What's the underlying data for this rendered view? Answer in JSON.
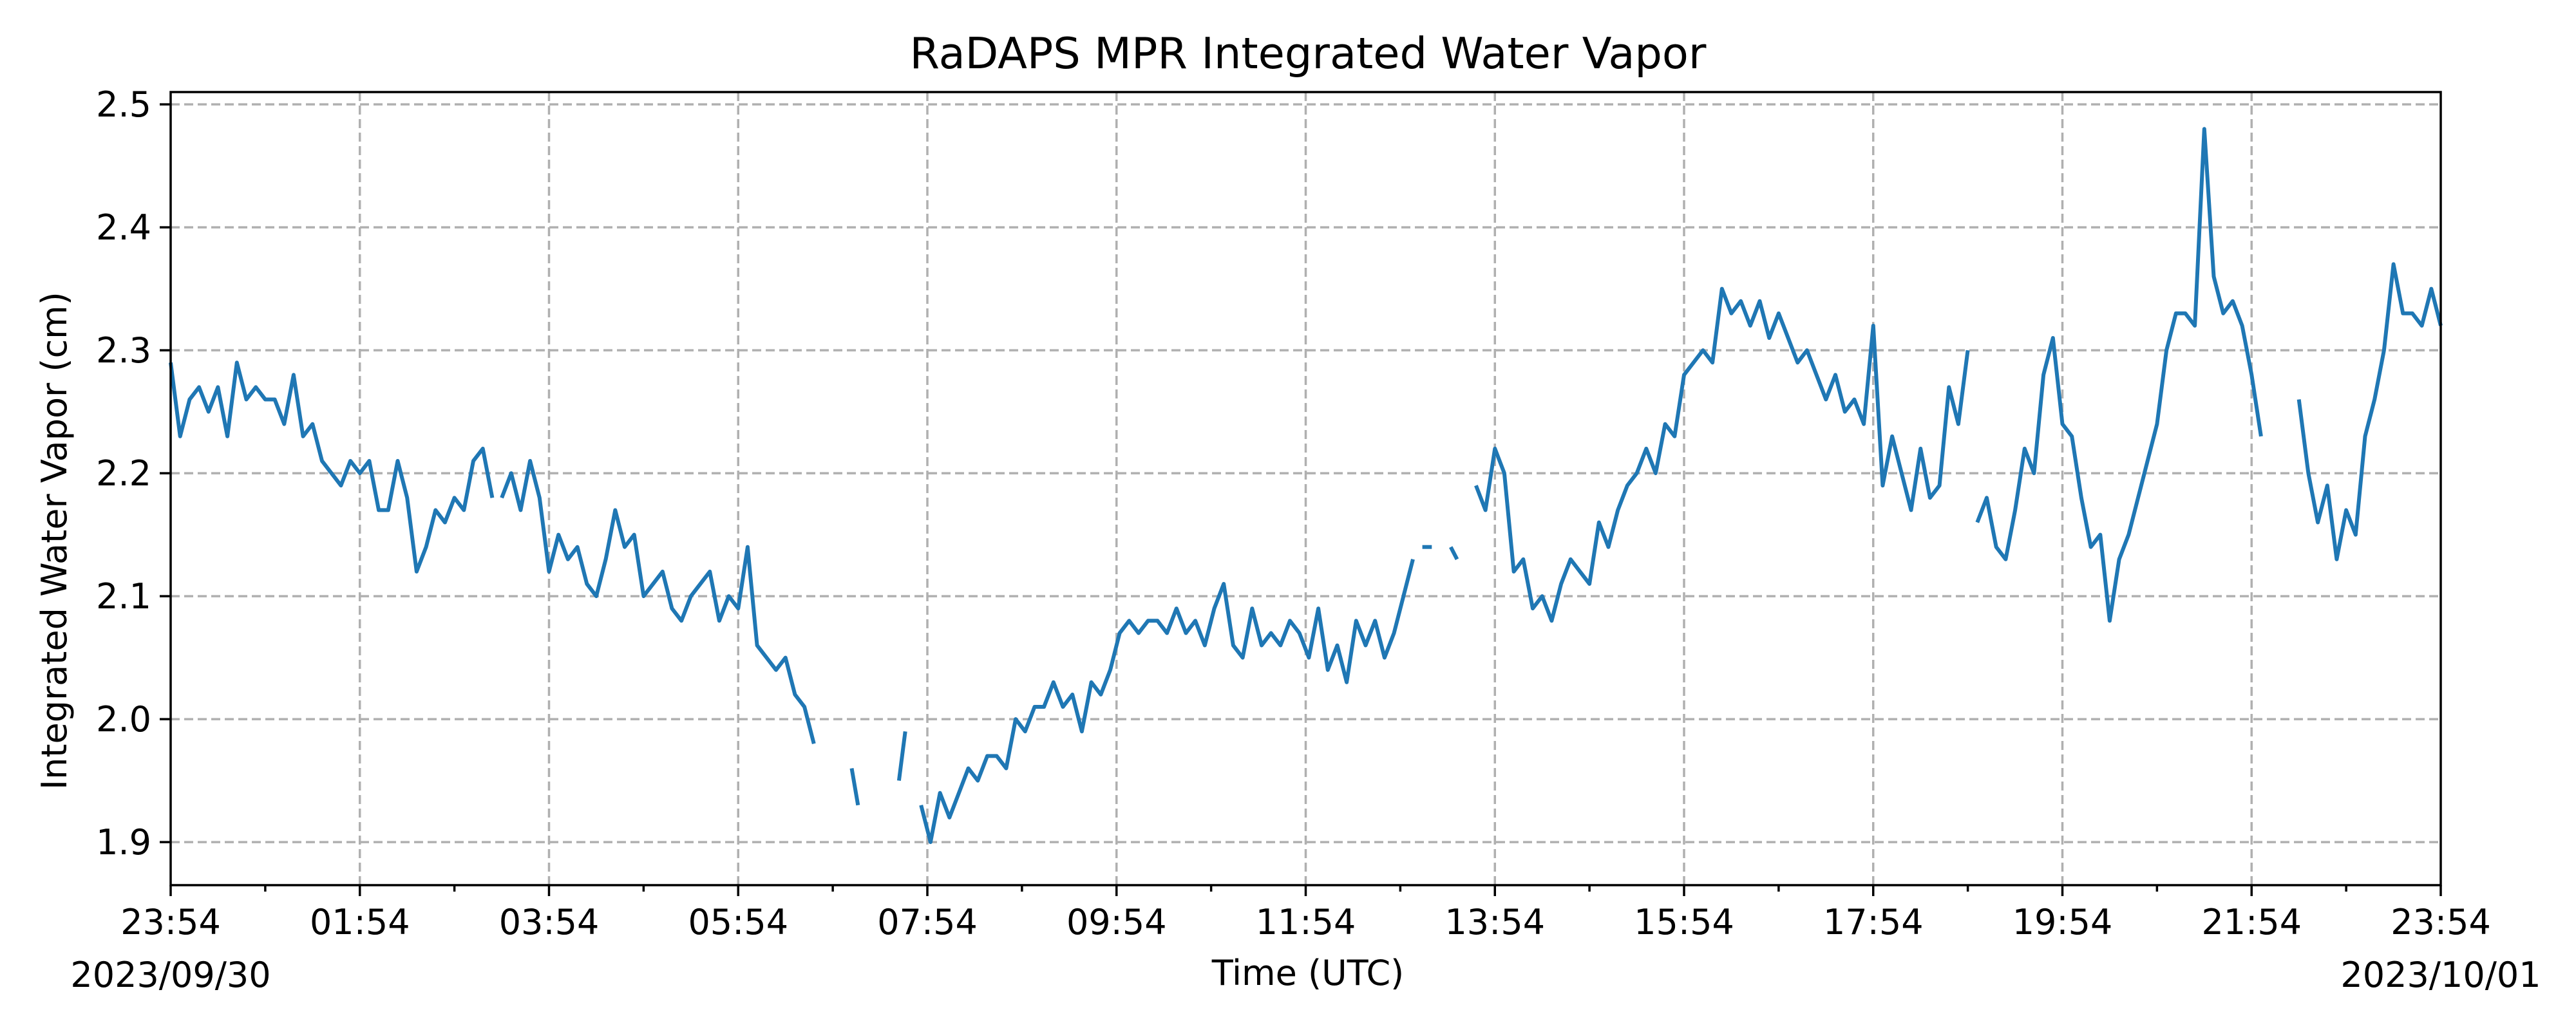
{
  "chart_data": {
    "type": "line",
    "title": "RaDAPS MPR Integrated Water Vapor",
    "xlabel": "Time (UTC)",
    "ylabel": "Integrated Water Vapor (cm)",
    "x_ticks": [
      "23:54",
      "01:54",
      "03:54",
      "05:54",
      "07:54",
      "09:54",
      "11:54",
      "13:54",
      "15:54",
      "17:54",
      "19:54",
      "21:54",
      "23:54"
    ],
    "date_start": "2023/09/30",
    "date_end": "2023/10/01",
    "xlim": [
      "2023-09-30T23:54",
      "2023-10-01T23:54"
    ],
    "y_ticks": [
      1.9,
      2.0,
      2.1,
      2.2,
      2.3,
      2.4,
      2.5
    ],
    "ylim": [
      1.865,
      2.51
    ],
    "grid": true,
    "grid_style": "dashed",
    "series": [
      {
        "color": "#1f77b4",
        "segments": [
          [
            [
              "2023-09-30T23:54",
              2.29
            ],
            [
              "2023-10-01T00:00",
              2.23
            ],
            [
              "2023-10-01T00:06",
              2.26
            ],
            [
              "2023-10-01T00:12",
              2.27
            ],
            [
              "2023-10-01T00:18",
              2.25
            ],
            [
              "2023-10-01T00:24",
              2.27
            ],
            [
              "2023-10-01T00:30",
              2.23
            ],
            [
              "2023-10-01T00:36",
              2.29
            ],
            [
              "2023-10-01T00:42",
              2.26
            ],
            [
              "2023-10-01T00:48",
              2.27
            ],
            [
              "2023-10-01T00:54",
              2.26
            ],
            [
              "2023-10-01T01:00",
              2.26
            ],
            [
              "2023-10-01T01:06",
              2.24
            ],
            [
              "2023-10-01T01:12",
              2.28
            ],
            [
              "2023-10-01T01:18",
              2.23
            ],
            [
              "2023-10-01T01:24",
              2.24
            ],
            [
              "2023-10-01T01:30",
              2.21
            ],
            [
              "2023-10-01T01:36",
              2.2
            ],
            [
              "2023-10-01T01:42",
              2.19
            ],
            [
              "2023-10-01T01:48",
              2.21
            ],
            [
              "2023-10-01T01:54",
              2.2
            ],
            [
              "2023-10-01T02:00",
              2.21
            ],
            [
              "2023-10-01T02:06",
              2.17
            ],
            [
              "2023-10-01T02:12",
              2.17
            ],
            [
              "2023-10-01T02:18",
              2.21
            ],
            [
              "2023-10-01T02:24",
              2.18
            ],
            [
              "2023-10-01T02:30",
              2.12
            ],
            [
              "2023-10-01T02:36",
              2.14
            ],
            [
              "2023-10-01T02:42",
              2.17
            ],
            [
              "2023-10-01T02:48",
              2.16
            ],
            [
              "2023-10-01T02:54",
              2.18
            ],
            [
              "2023-10-01T03:00",
              2.17
            ],
            [
              "2023-10-01T03:06",
              2.21
            ],
            [
              "2023-10-01T03:12",
              2.22
            ],
            [
              "2023-10-01T03:18",
              2.18
            ]
          ],
          [
            [
              "2023-10-01T03:24",
              2.18
            ],
            [
              "2023-10-01T03:30",
              2.2
            ],
            [
              "2023-10-01T03:36",
              2.17
            ],
            [
              "2023-10-01T03:42",
              2.21
            ],
            [
              "2023-10-01T03:48",
              2.18
            ],
            [
              "2023-10-01T03:54",
              2.12
            ],
            [
              "2023-10-01T04:00",
              2.15
            ],
            [
              "2023-10-01T04:06",
              2.13
            ],
            [
              "2023-10-01T04:12",
              2.14
            ],
            [
              "2023-10-01T04:18",
              2.11
            ],
            [
              "2023-10-01T04:24",
              2.1
            ],
            [
              "2023-10-01T04:30",
              2.13
            ],
            [
              "2023-10-01T04:36",
              2.17
            ],
            [
              "2023-10-01T04:42",
              2.14
            ],
            [
              "2023-10-01T04:48",
              2.15
            ],
            [
              "2023-10-01T04:54",
              2.1
            ],
            [
              "2023-10-01T05:00",
              2.11
            ],
            [
              "2023-10-01T05:06",
              2.12
            ],
            [
              "2023-10-01T05:12",
              2.09
            ],
            [
              "2023-10-01T05:18",
              2.08
            ],
            [
              "2023-10-01T05:24",
              2.1
            ],
            [
              "2023-10-01T05:30",
              2.11
            ],
            [
              "2023-10-01T05:36",
              2.12
            ],
            [
              "2023-10-01T05:42",
              2.08
            ],
            [
              "2023-10-01T05:48",
              2.1
            ],
            [
              "2023-10-01T05:54",
              2.09
            ],
            [
              "2023-10-01T06:00",
              2.14
            ],
            [
              "2023-10-01T06:06",
              2.06
            ],
            [
              "2023-10-01T06:12",
              2.05
            ],
            [
              "2023-10-01T06:18",
              2.04
            ],
            [
              "2023-10-01T06:24",
              2.05
            ],
            [
              "2023-10-01T06:30",
              2.02
            ],
            [
              "2023-10-01T06:36",
              2.01
            ],
            [
              "2023-10-01T06:42",
              1.98
            ]
          ],
          [
            [
              "2023-10-01T07:06",
              1.96
            ],
            [
              "2023-10-01T07:10",
              1.93
            ]
          ],
          [
            [
              "2023-10-01T07:36",
              1.95
            ],
            [
              "2023-10-01T07:40",
              1.99
            ]
          ],
          [
            [
              "2023-10-01T07:50",
              1.93
            ],
            [
              "2023-10-01T07:56",
              1.9
            ],
            [
              "2023-10-01T08:02",
              1.94
            ],
            [
              "2023-10-01T08:08",
              1.92
            ],
            [
              "2023-10-01T08:14",
              1.94
            ],
            [
              "2023-10-01T08:20",
              1.96
            ],
            [
              "2023-10-01T08:26",
              1.95
            ],
            [
              "2023-10-01T08:32",
              1.97
            ],
            [
              "2023-10-01T08:38",
              1.97
            ],
            [
              "2023-10-01T08:44",
              1.96
            ],
            [
              "2023-10-01T08:50",
              2.0
            ],
            [
              "2023-10-01T08:56",
              1.99
            ],
            [
              "2023-10-01T09:02",
              2.01
            ],
            [
              "2023-10-01T09:08",
              2.01
            ],
            [
              "2023-10-01T09:14",
              2.03
            ],
            [
              "2023-10-01T09:20",
              2.01
            ],
            [
              "2023-10-01T09:26",
              2.02
            ],
            [
              "2023-10-01T09:32",
              1.99
            ],
            [
              "2023-10-01T09:38",
              2.03
            ],
            [
              "2023-10-01T09:44",
              2.02
            ],
            [
              "2023-10-01T09:50",
              2.04
            ],
            [
              "2023-10-01T09:56",
              2.07
            ],
            [
              "2023-10-01T10:02",
              2.08
            ],
            [
              "2023-10-01T10:08",
              2.07
            ],
            [
              "2023-10-01T10:14",
              2.08
            ],
            [
              "2023-10-01T10:20",
              2.08
            ],
            [
              "2023-10-01T10:26",
              2.07
            ],
            [
              "2023-10-01T10:32",
              2.09
            ],
            [
              "2023-10-01T10:38",
              2.07
            ],
            [
              "2023-10-01T10:44",
              2.08
            ],
            [
              "2023-10-01T10:50",
              2.06
            ],
            [
              "2023-10-01T10:56",
              2.09
            ],
            [
              "2023-10-01T11:02",
              2.11
            ],
            [
              "2023-10-01T11:08",
              2.06
            ],
            [
              "2023-10-01T11:14",
              2.05
            ],
            [
              "2023-10-01T11:20",
              2.09
            ],
            [
              "2023-10-01T11:26",
              2.06
            ],
            [
              "2023-10-01T11:32",
              2.07
            ],
            [
              "2023-10-01T11:38",
              2.06
            ],
            [
              "2023-10-01T11:44",
              2.08
            ],
            [
              "2023-10-01T11:50",
              2.07
            ],
            [
              "2023-10-01T11:56",
              2.05
            ],
            [
              "2023-10-01T12:02",
              2.09
            ],
            [
              "2023-10-01T12:08",
              2.04
            ],
            [
              "2023-10-01T12:14",
              2.06
            ],
            [
              "2023-10-01T12:20",
              2.03
            ],
            [
              "2023-10-01T12:26",
              2.08
            ],
            [
              "2023-10-01T12:32",
              2.06
            ],
            [
              "2023-10-01T12:38",
              2.08
            ],
            [
              "2023-10-01T12:44",
              2.05
            ],
            [
              "2023-10-01T12:50",
              2.07
            ],
            [
              "2023-10-01T12:56",
              2.1
            ],
            [
              "2023-10-01T13:02",
              2.13
            ]
          ],
          [
            [
              "2023-10-01T13:08",
              2.14
            ],
            [
              "2023-10-01T13:14",
              2.14
            ]
          ],
          [
            [
              "2023-10-01T13:26",
              2.14
            ],
            [
              "2023-10-01T13:30",
              2.13
            ]
          ],
          [
            [
              "2023-10-01T13:42",
              2.19
            ],
            [
              "2023-10-01T13:48",
              2.17
            ],
            [
              "2023-10-01T13:54",
              2.22
            ],
            [
              "2023-10-01T14:00",
              2.2
            ],
            [
              "2023-10-01T14:06",
              2.12
            ],
            [
              "2023-10-01T14:12",
              2.13
            ],
            [
              "2023-10-01T14:18",
              2.09
            ],
            [
              "2023-10-01T14:24",
              2.1
            ],
            [
              "2023-10-01T14:30",
              2.08
            ],
            [
              "2023-10-01T14:36",
              2.11
            ],
            [
              "2023-10-01T14:42",
              2.13
            ],
            [
              "2023-10-01T14:48",
              2.12
            ],
            [
              "2023-10-01T14:54",
              2.11
            ],
            [
              "2023-10-01T15:00",
              2.16
            ],
            [
              "2023-10-01T15:06",
              2.14
            ],
            [
              "2023-10-01T15:12",
              2.17
            ],
            [
              "2023-10-01T15:18",
              2.19
            ],
            [
              "2023-10-01T15:24",
              2.2
            ],
            [
              "2023-10-01T15:30",
              2.22
            ],
            [
              "2023-10-01T15:36",
              2.2
            ],
            [
              "2023-10-01T15:42",
              2.24
            ],
            [
              "2023-10-01T15:48",
              2.23
            ],
            [
              "2023-10-01T15:54",
              2.28
            ],
            [
              "2023-10-01T16:00",
              2.29
            ],
            [
              "2023-10-01T16:06",
              2.3
            ],
            [
              "2023-10-01T16:12",
              2.29
            ],
            [
              "2023-10-01T16:18",
              2.35
            ],
            [
              "2023-10-01T16:24",
              2.33
            ],
            [
              "2023-10-01T16:30",
              2.34
            ],
            [
              "2023-10-01T16:36",
              2.32
            ],
            [
              "2023-10-01T16:42",
              2.34
            ],
            [
              "2023-10-01T16:48",
              2.31
            ],
            [
              "2023-10-01T16:54",
              2.33
            ],
            [
              "2023-10-01T17:00",
              2.31
            ],
            [
              "2023-10-01T17:06",
              2.29
            ],
            [
              "2023-10-01T17:12",
              2.3
            ],
            [
              "2023-10-01T17:18",
              2.28
            ],
            [
              "2023-10-01T17:24",
              2.26
            ],
            [
              "2023-10-01T17:30",
              2.28
            ],
            [
              "2023-10-01T17:36",
              2.25
            ],
            [
              "2023-10-01T17:42",
              2.26
            ],
            [
              "2023-10-01T17:48",
              2.24
            ],
            [
              "2023-10-01T17:54",
              2.32
            ],
            [
              "2023-10-01T18:00",
              2.19
            ],
            [
              "2023-10-01T18:06",
              2.23
            ],
            [
              "2023-10-01T18:12",
              2.2
            ],
            [
              "2023-10-01T18:18",
              2.17
            ],
            [
              "2023-10-01T18:24",
              2.22
            ],
            [
              "2023-10-01T18:30",
              2.18
            ],
            [
              "2023-10-01T18:36",
              2.19
            ],
            [
              "2023-10-01T18:42",
              2.27
            ],
            [
              "2023-10-01T18:48",
              2.24
            ],
            [
              "2023-10-01T18:54",
              2.3
            ]
          ],
          [
            [
              "2023-10-01T19:00",
              2.16
            ],
            [
              "2023-10-01T19:06",
              2.18
            ],
            [
              "2023-10-01T19:12",
              2.14
            ],
            [
              "2023-10-01T19:18",
              2.13
            ],
            [
              "2023-10-01T19:24",
              2.17
            ],
            [
              "2023-10-01T19:30",
              2.22
            ],
            [
              "2023-10-01T19:36",
              2.2
            ],
            [
              "2023-10-01T19:42",
              2.28
            ],
            [
              "2023-10-01T19:48",
              2.31
            ],
            [
              "2023-10-01T19:54",
              2.24
            ],
            [
              "2023-10-01T20:00",
              2.23
            ],
            [
              "2023-10-01T20:06",
              2.18
            ],
            [
              "2023-10-01T20:12",
              2.14
            ],
            [
              "2023-10-01T20:18",
              2.15
            ],
            [
              "2023-10-01T20:24",
              2.08
            ],
            [
              "2023-10-01T20:30",
              2.13
            ],
            [
              "2023-10-01T20:36",
              2.15
            ],
            [
              "2023-10-01T20:42",
              2.18
            ],
            [
              "2023-10-01T20:48",
              2.21
            ],
            [
              "2023-10-01T20:54",
              2.24
            ],
            [
              "2023-10-01T21:00",
              2.3
            ],
            [
              "2023-10-01T21:06",
              2.33
            ],
            [
              "2023-10-01T21:12",
              2.33
            ],
            [
              "2023-10-01T21:18",
              2.32
            ],
            [
              "2023-10-01T21:24",
              2.48
            ],
            [
              "2023-10-01T21:30",
              2.36
            ],
            [
              "2023-10-01T21:36",
              2.33
            ],
            [
              "2023-10-01T21:42",
              2.34
            ],
            [
              "2023-10-01T21:48",
              2.32
            ],
            [
              "2023-10-01T21:54",
              2.28
            ],
            [
              "2023-10-01T22:00",
              2.23
            ]
          ],
          [
            [
              "2023-10-01T22:24",
              2.26
            ],
            [
              "2023-10-01T22:30",
              2.2
            ],
            [
              "2023-10-01T22:36",
              2.16
            ],
            [
              "2023-10-01T22:42",
              2.19
            ],
            [
              "2023-10-01T22:48",
              2.13
            ],
            [
              "2023-10-01T22:54",
              2.17
            ],
            [
              "2023-10-01T23:00",
              2.15
            ],
            [
              "2023-10-01T23:06",
              2.23
            ],
            [
              "2023-10-01T23:12",
              2.26
            ],
            [
              "2023-10-01T23:18",
              2.3
            ],
            [
              "2023-10-01T23:24",
              2.37
            ],
            [
              "2023-10-01T23:30",
              2.33
            ],
            [
              "2023-10-01T23:36",
              2.33
            ],
            [
              "2023-10-01T23:42",
              2.32
            ],
            [
              "2023-10-01T23:48",
              2.35
            ],
            [
              "2023-10-01T23:54",
              2.32
            ]
          ]
        ]
      }
    ]
  }
}
